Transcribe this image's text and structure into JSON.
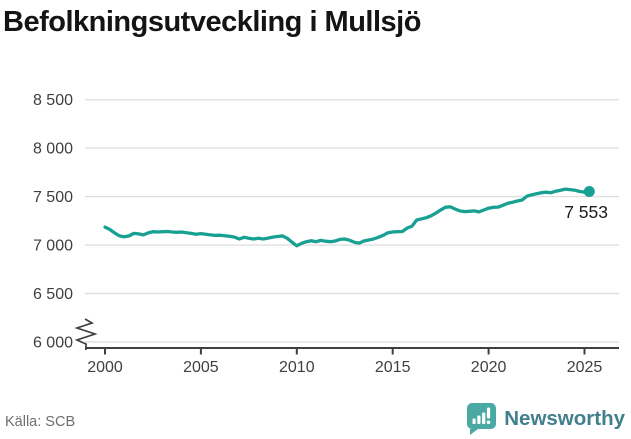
{
  "title": "Befolkningsutveckling i Mullsjö",
  "source": "Källa: SCB",
  "branding": {
    "name": "Newsworthy"
  },
  "end_label": "7 553",
  "colors": {
    "line": "#18a092",
    "logo_bubble": "#4ba9a3",
    "logo_bars": "#ffffff",
    "grid": "#e0e0e0",
    "axis": "#3f3f3f",
    "tick_text": "#3f3f3f",
    "title_text": "#141414",
    "source_text": "#6f6f6f",
    "brand_text": "#417f8e",
    "end_label_text": "#1c1c1c"
  },
  "chart_data": {
    "type": "line",
    "title": "Befolkningsutveckling i Mullsjö",
    "xlabel": "",
    "ylabel": "",
    "series_name": "Befolkning i Mullsjö",
    "x_start": 2000,
    "x_step": 0.25,
    "values": [
      7185,
      7160,
      7125,
      7095,
      7085,
      7095,
      7120,
      7115,
      7105,
      7125,
      7138,
      7135,
      7138,
      7140,
      7135,
      7132,
      7135,
      7128,
      7120,
      7112,
      7118,
      7112,
      7105,
      7100,
      7102,
      7096,
      7090,
      7082,
      7062,
      7080,
      7070,
      7062,
      7070,
      7062,
      7072,
      7082,
      7088,
      7095,
      7070,
      7030,
      6992,
      7018,
      7035,
      7045,
      7035,
      7048,
      7040,
      7035,
      7042,
      7058,
      7062,
      7050,
      7028,
      7020,
      7042,
      7052,
      7062,
      7080,
      7100,
      7128,
      7135,
      7138,
      7140,
      7175,
      7195,
      7258,
      7270,
      7282,
      7302,
      7330,
      7362,
      7390,
      7395,
      7372,
      7352,
      7345,
      7348,
      7352,
      7342,
      7362,
      7380,
      7390,
      7392,
      7410,
      7432,
      7442,
      7455,
      7465,
      7505,
      7518,
      7530,
      7540,
      7545,
      7540,
      7556,
      7566,
      7577,
      7572,
      7566,
      7552,
      7546,
      7553
    ],
    "last_value": 7553,
    "last_value_label": "7 553",
    "y_ticks": [
      6000,
      6500,
      7000,
      7500,
      8000,
      8500
    ],
    "y_tick_labels": [
      "6 000",
      "6 500",
      "7 000",
      "7 500",
      "8 000",
      "8 500"
    ],
    "x_ticks": [
      2000,
      2005,
      2010,
      2015,
      2020,
      2025
    ],
    "x_tick_labels": [
      "2000",
      "2005",
      "2010",
      "2015",
      "2020",
      "2025"
    ],
    "ylim": [
      6000,
      8600
    ],
    "xlim": [
      1999,
      2027
    ],
    "grid": "horizontal",
    "axis_break": true,
    "legend": "none"
  }
}
